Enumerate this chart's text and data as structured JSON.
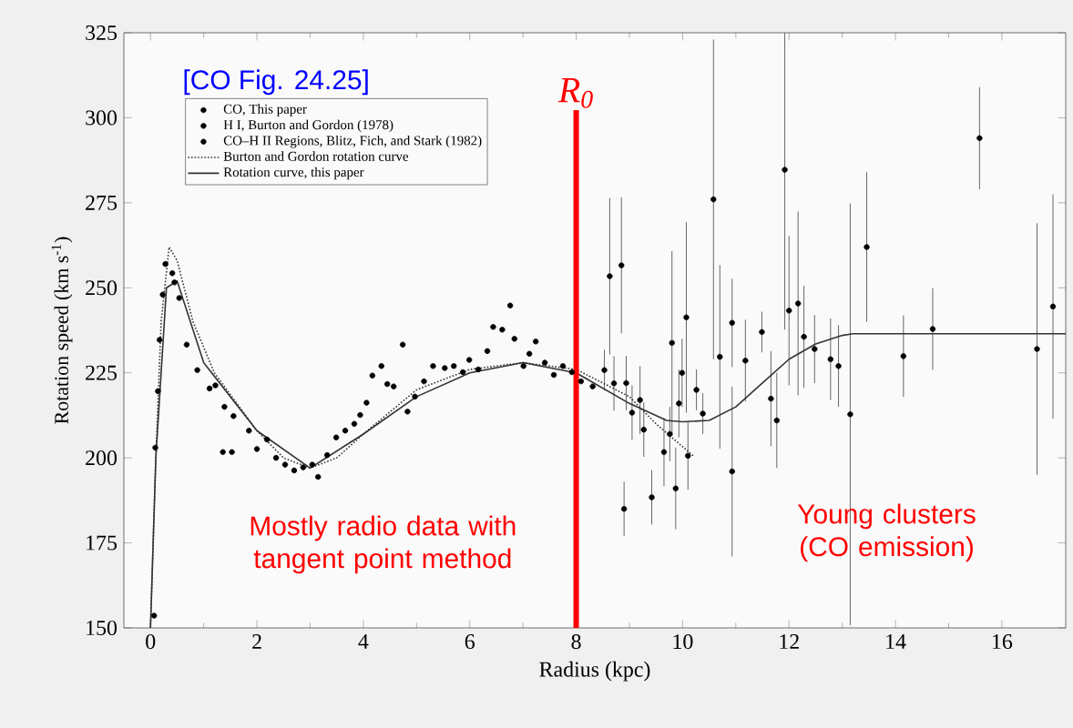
{
  "chart_data": {
    "type": "scatter",
    "xlabel": "Radius (kpc)",
    "ylabel": "Rotation speed (km s$^{-1}$)",
    "xlim": [
      -0.5,
      17.2
    ],
    "ylim": [
      150,
      325
    ],
    "xticks": [
      0,
      2,
      4,
      6,
      8,
      10,
      12,
      14,
      16
    ],
    "yticks": [
      150,
      175,
      200,
      225,
      250,
      275,
      300,
      325
    ],
    "grid": false,
    "legend": "top left",
    "annotations": [
      "[CO Fig. 24.25]",
      "Mostly radio data with tangent point method",
      "Young clusters (CO emission)"
    ],
    "ref_lines": [
      {
        "axis": "x",
        "value": 8,
        "label": "R$_{0}$",
        "color": "#ff0000"
      }
    ],
    "series": [
      {
        "name": "CO, This paper",
        "marker": "circle",
        "color": "#000000",
        "x": [
          0.68,
          0.88,
          1.11,
          1.22,
          1.39,
          1.56,
          1.36,
          1.53,
          1.85,
          2.0,
          2.19,
          2.36,
          2.53,
          2.7,
          2.87,
          3.04,
          3.15,
          3.32,
          3.49,
          3.66,
          3.83,
          3.94,
          4.06,
          4.17,
          4.34,
          4.45,
          4.57,
          4.74,
          4.83,
          4.97,
          5.14,
          5.31,
          5.53,
          5.7,
          5.87,
          5.99,
          6.16,
          6.33,
          6.44,
          6.61,
          6.76,
          6.84,
          7.01,
          7.12,
          7.24,
          7.41,
          7.58,
          7.75,
          7.92,
          8.09,
          8.31
        ],
        "values": [
          233.3,
          225.8,
          220.4,
          221.3,
          215,
          212.3,
          201.7,
          201.7,
          208,
          202.6,
          205.4,
          200,
          198,
          196.3,
          197.2,
          198,
          194.4,
          200.8,
          206,
          208,
          210,
          212.6,
          216.2,
          224.2,
          227,
          221.7,
          221,
          233.3,
          213.6,
          218,
          222.5,
          227,
          226.4,
          227,
          225.2,
          228.8,
          226,
          231.4,
          238.5,
          237.7,
          244.8,
          235,
          227,
          230.6,
          234.2,
          228,
          224.4,
          227,
          225.2,
          222.5,
          221
        ]
      },
      {
        "name": "H I, Burton and Gordon (1978)",
        "marker": "circle",
        "color": "#000000",
        "x": [
          0.068,
          0.09,
          0.14,
          0.17,
          0.23,
          0.28,
          0.41,
          0.45,
          0.54
        ],
        "values": [
          153.6,
          203,
          219.6,
          234.7,
          248,
          257,
          254.3,
          251.6,
          247
        ]
      },
      {
        "name": "CO–H II Regions, Blitz, Fich, and Stark (1982)",
        "marker": "circle",
        "color": "#000000",
        "x": [
          8.53,
          8.63,
          8.71,
          8.85,
          8.9,
          8.94,
          9.05,
          9.2,
          9.27,
          9.42,
          9.65,
          9.76,
          9.8,
          9.87,
          9.93,
          9.99,
          10.07,
          10.1,
          10.26,
          10.38,
          10.58,
          10.7,
          10.93,
          10.93,
          11.18,
          11.49,
          11.66,
          11.77,
          11.92,
          12.0,
          12.17,
          12.28,
          12.48,
          12.78,
          12.93,
          13.15,
          13.46,
          14.15,
          14.7,
          15.58,
          16.66,
          16.96
        ],
        "values": [
          225.8,
          253.4,
          221.9,
          256.6,
          185,
          222,
          213.3,
          217,
          208.3,
          188.4,
          201.7,
          207,
          233.8,
          191,
          216,
          225,
          241.3,
          200.6,
          220,
          213,
          276,
          229.7,
          196,
          239.7,
          228.6,
          237,
          217.4,
          211,
          284.7,
          243.3,
          245.4,
          235.6,
          232,
          229,
          227,
          212.8,
          262,
          229.9,
          237.9,
          294,
          232,
          244.5
        ],
        "errors": [
          6,
          23,
          8,
          20,
          8,
          8,
          8,
          10,
          8,
          8,
          10,
          8,
          27,
          12,
          10,
          10,
          28,
          10,
          6,
          6,
          47,
          27,
          25,
          13,
          12,
          6,
          14,
          14,
          47,
          22,
          27,
          15,
          10,
          12,
          12,
          62,
          22,
          12,
          12,
          15,
          37,
          33
        ]
      },
      {
        "name": "Burton and Gordon rotation curve",
        "type": "line",
        "marker": "none",
        "line_style": "dotted",
        "color": "#333333",
        "x": [
          0,
          0.1,
          0.2,
          0.35,
          0.5,
          0.8,
          1.2,
          2,
          2.5,
          3,
          3.5,
          4,
          5,
          6,
          7,
          8,
          9,
          9.5,
          10.2
        ],
        "values": [
          150,
          200,
          240,
          262,
          258,
          240,
          225,
          208,
          200,
          197,
          200,
          207,
          220,
          226,
          228,
          226,
          218,
          210,
          200.6
        ]
      },
      {
        "name": "Rotation curve, this paper",
        "type": "line",
        "marker": "none",
        "line_style": "solid",
        "color": "#333333",
        "x": [
          0,
          0.1,
          0.3,
          0.5,
          1,
          2,
          3,
          4,
          5,
          6,
          7,
          8,
          9,
          9.7,
          10,
          10.5,
          11,
          11.5,
          12,
          12.5,
          13,
          13.2,
          17.2
        ],
        "values": [
          150,
          200,
          250,
          252,
          228,
          208,
          197,
          207,
          218,
          225,
          228,
          225,
          216,
          211,
          210.6,
          211,
          215,
          222,
          229,
          233.5,
          236,
          236.5,
          236.5
        ]
      }
    ]
  }
}
